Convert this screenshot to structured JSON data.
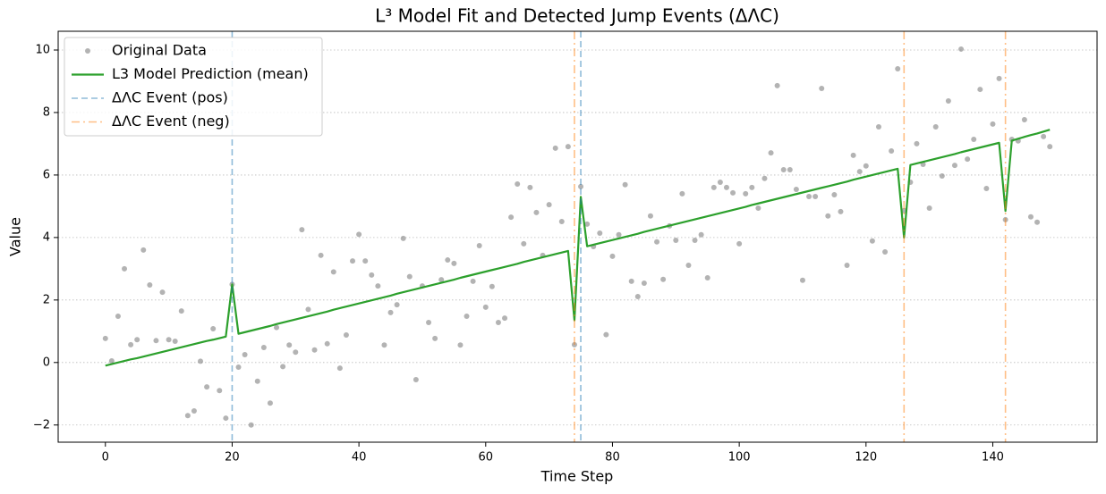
{
  "chart_data": {
    "type": "line",
    "title": "L³ Model Fit and Detected Jump Events (ΔΛC)",
    "xlabel": "Time Step",
    "ylabel": "Value",
    "xlim": [
      -7.45,
      156.45
    ],
    "ylim": [
      -2.55,
      10.6
    ],
    "xticks": [
      0,
      20,
      40,
      60,
      80,
      100,
      120,
      140
    ],
    "yticks": [
      {
        "value": -2,
        "label": "−2"
      },
      0,
      2,
      4,
      6,
      8,
      10
    ],
    "grid": "y",
    "legend": "upper left",
    "x": [
      0,
      1,
      2,
      3,
      4,
      5,
      6,
      7,
      8,
      9,
      10,
      11,
      12,
      13,
      14,
      15,
      16,
      17,
      18,
      19,
      20,
      21,
      22,
      23,
      24,
      25,
      26,
      27,
      28,
      29,
      30,
      31,
      32,
      33,
      34,
      35,
      36,
      37,
      38,
      39,
      40,
      41,
      42,
      43,
      44,
      45,
      46,
      47,
      48,
      49,
      50,
      51,
      52,
      53,
      54,
      55,
      56,
      57,
      58,
      59,
      60,
      61,
      62,
      63,
      64,
      65,
      66,
      67,
      68,
      69,
      70,
      71,
      72,
      73,
      74,
      75,
      76,
      77,
      78,
      79,
      80,
      81,
      82,
      83,
      84,
      85,
      86,
      87,
      88,
      89,
      90,
      91,
      92,
      93,
      94,
      95,
      96,
      97,
      98,
      99,
      100,
      101,
      102,
      103,
      104,
      105,
      106,
      107,
      108,
      109,
      110,
      111,
      112,
      113,
      114,
      115,
      116,
      117,
      118,
      119,
      120,
      121,
      122,
      123,
      124,
      125,
      126,
      127,
      128,
      129,
      130,
      131,
      132,
      133,
      134,
      135,
      136,
      137,
      138,
      139,
      140,
      141,
      142,
      143,
      144,
      145,
      146,
      147,
      148,
      149
    ],
    "series": [
      {
        "name": "Original Data",
        "kind": "scatter",
        "color": "#808080",
        "values": [
          0.77,
          0.05,
          1.48,
          3.0,
          0.57,
          0.73,
          3.6,
          2.48,
          0.7,
          2.25,
          0.73,
          0.68,
          1.65,
          -1.7,
          -1.55,
          0.04,
          -0.78,
          1.08,
          -0.9,
          -1.78,
          2.5,
          -0.15,
          0.25,
          -2.0,
          -0.6,
          0.48,
          -1.3,
          1.12,
          -0.13,
          0.56,
          0.33,
          4.25,
          1.7,
          0.4,
          3.43,
          0.6,
          2.9,
          -0.18,
          0.88,
          3.25,
          4.1,
          3.25,
          2.8,
          2.45,
          0.56,
          1.6,
          1.85,
          3.97,
          2.75,
          -0.55,
          2.45,
          1.28,
          0.77,
          2.65,
          3.28,
          3.17,
          0.56,
          1.48,
          2.6,
          3.74,
          1.77,
          2.43,
          1.28,
          1.42,
          4.65,
          5.71,
          3.8,
          5.6,
          4.8,
          3.43,
          5.05,
          6.86,
          4.51,
          6.91,
          0.57,
          5.63,
          4.43,
          3.71,
          4.14,
          0.89,
          3.4,
          4.09,
          5.69,
          2.6,
          2.11,
          2.54,
          4.69,
          3.86,
          2.66,
          4.37,
          3.91,
          5.4,
          3.11,
          3.91,
          4.09,
          2.71,
          5.6,
          5.77,
          5.6,
          5.43,
          3.8,
          5.4,
          5.6,
          4.94,
          5.89,
          6.71,
          8.86,
          6.17,
          6.17,
          5.54,
          2.63,
          5.31,
          5.31,
          8.77,
          4.69,
          5.37,
          4.83,
          3.11,
          6.63,
          6.11,
          6.29,
          3.89,
          7.54,
          3.54,
          6.77,
          9.4,
          4.86,
          5.77,
          7.0,
          6.34,
          4.94,
          7.54,
          5.97,
          8.37,
          6.31,
          10.03,
          6.51,
          7.14,
          8.74,
          5.57,
          7.63,
          9.09,
          4.57,
          7.14,
          7.09,
          7.77,
          4.66,
          4.49,
          7.23,
          6.91
        ]
      },
      {
        "name": "L3 Model Prediction (mean)",
        "kind": "line",
        "color": "#2ca02c",
        "values": [
          -0.1,
          -0.05,
          0,
          0.05,
          0.1,
          0.14,
          0.19,
          0.24,
          0.29,
          0.34,
          0.39,
          0.44,
          0.49,
          0.54,
          0.59,
          0.64,
          0.69,
          0.73,
          0.78,
          0.83,
          2.5,
          0.92,
          0.97,
          1.02,
          1.07,
          1.12,
          1.17,
          1.23,
          1.28,
          1.33,
          1.38,
          1.43,
          1.48,
          1.53,
          1.58,
          1.63,
          1.69,
          1.74,
          1.79,
          1.84,
          1.89,
          1.94,
          1.99,
          2.04,
          2.09,
          2.14,
          2.2,
          2.25,
          2.3,
          2.35,
          2.4,
          2.45,
          2.5,
          2.55,
          2.6,
          2.65,
          2.71,
          2.76,
          2.81,
          2.86,
          2.91,
          2.96,
          3.01,
          3.06,
          3.11,
          3.16,
          3.22,
          3.27,
          3.32,
          3.37,
          3.42,
          3.47,
          3.52,
          3.57,
          1.35,
          5.3,
          3.72,
          3.77,
          3.82,
          3.87,
          3.92,
          3.97,
          4.02,
          4.07,
          4.12,
          4.18,
          4.23,
          4.28,
          4.33,
          4.38,
          4.43,
          4.48,
          4.53,
          4.58,
          4.63,
          4.68,
          4.73,
          4.78,
          4.83,
          4.88,
          4.93,
          4.98,
          5.04,
          5.09,
          5.14,
          5.19,
          5.24,
          5.29,
          5.34,
          5.39,
          5.44,
          5.49,
          5.54,
          5.59,
          5.64,
          5.69,
          5.74,
          5.79,
          5.85,
          5.9,
          5.95,
          6.0,
          6.05,
          6.1,
          6.15,
          6.2,
          4.0,
          6.32,
          6.37,
          6.42,
          6.47,
          6.52,
          6.57,
          6.62,
          6.67,
          6.73,
          6.78,
          6.83,
          6.88,
          6.93,
          6.98,
          7.03,
          4.85,
          7.1,
          7.16,
          7.22,
          7.28,
          7.33,
          7.39,
          7.45
        ]
      },
      {
        "name": "ΔΛC Event (pos)",
        "kind": "vline",
        "color": "#1f77b4",
        "dash": "dashed",
        "events": [
          20,
          75
        ]
      },
      {
        "name": "ΔΛC Event (neg)",
        "kind": "vline",
        "color": "#ff7f0e",
        "dash": "dashdot",
        "events": [
          74,
          126,
          142
        ]
      }
    ]
  }
}
